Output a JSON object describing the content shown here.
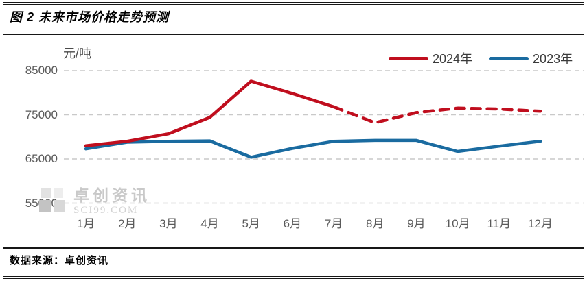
{
  "page": {
    "title": "图 2 未来市场价格走势预测",
    "source": "数据来源：卓创资讯"
  },
  "watermark": {
    "name": "卓创资讯",
    "domain": "SCI99.COM"
  },
  "chart_data": {
    "type": "line",
    "title": "图 2 未来市场价格走势预测",
    "xlabel": "",
    "ylabel": "元/吨",
    "categories": [
      "1月",
      "2月",
      "3月",
      "4月",
      "5月",
      "6月",
      "7月",
      "8月",
      "9月",
      "10月",
      "11月",
      "12月"
    ],
    "yticks": [
      85000,
      75000,
      65000,
      55000
    ],
    "ylim": [
      55000,
      88000
    ],
    "grid": "horizontal-dashed",
    "gridline_color": "#c9c9c9",
    "legend_position": "top-right",
    "series": [
      {
        "name": "2024年",
        "color": "#c00e1e",
        "values": [
          68000,
          69000,
          70700,
          74400,
          82600,
          79800,
          76800,
          73200,
          75500,
          76500,
          76300,
          75800
        ],
        "dashed_from_index": 6,
        "dashed_meaning": "forecast"
      },
      {
        "name": "2023年",
        "color": "#1a6ba0",
        "values": [
          67300,
          68800,
          69000,
          69100,
          65400,
          67400,
          69000,
          69200,
          69200,
          66700,
          67900,
          69000
        ],
        "dashed_from_index": null,
        "dashed_meaning": null
      }
    ]
  }
}
